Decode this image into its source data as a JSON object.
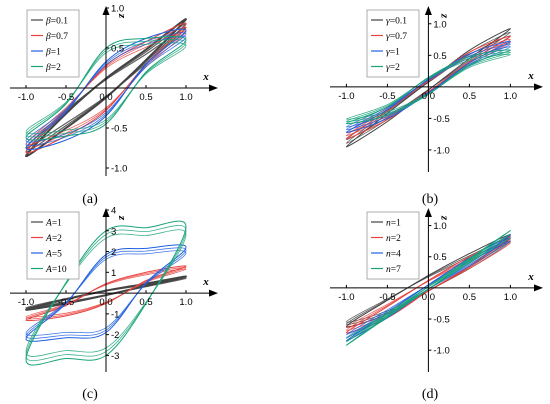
{
  "chart_data": [
    {
      "type": "line",
      "panel_label": "(a)",
      "xlabel": "x",
      "ylabel": "z",
      "xlim": [
        -1.2,
        1.3
      ],
      "ylim": [
        -1.1,
        1.0
      ],
      "xticks": [
        "-1.0",
        "-0.5",
        "0.0",
        "0.5",
        "1.0"
      ],
      "yticks": [
        "-1.0",
        "-0.5",
        "0.5",
        "1.0"
      ],
      "legend_position": "top-left",
      "series": [
        {
          "name": "β=0.1",
          "label_var": "β",
          "label_val": "=0.1",
          "color": "#444444",
          "stroke": 2.0,
          "x": [
            -1.0,
            -0.5,
            0.0,
            0.5,
            1.0,
            0.5,
            0.0,
            -0.5,
            -1.0
          ],
          "y": [
            -0.85,
            -0.5,
            -0.12,
            0.35,
            0.86,
            0.48,
            0.12,
            -0.32,
            -0.85
          ]
        },
        {
          "name": "β=0.7",
          "label_var": "β",
          "label_val": "=0.7",
          "color": "#e8433f",
          "stroke": 1.0,
          "x": [
            -1.0,
            -0.5,
            0.0,
            0.5,
            1.0,
            0.5,
            0.0,
            -0.5,
            -1.0
          ],
          "y": [
            -0.8,
            -0.6,
            -0.28,
            0.3,
            0.8,
            0.58,
            0.28,
            -0.28,
            -0.8
          ]
        },
        {
          "name": "β=1",
          "label_var": "β",
          "label_val": "=1",
          "color": "#2060e0",
          "stroke": 1.0,
          "x": [
            -1.0,
            -0.5,
            0.0,
            0.5,
            1.0,
            0.5,
            0.0,
            -0.5,
            -1.0
          ],
          "y": [
            -0.75,
            -0.65,
            -0.35,
            0.3,
            0.72,
            0.62,
            0.33,
            -0.3,
            -0.75
          ]
        },
        {
          "name": "β=2",
          "label_var": "β",
          "label_val": "=2",
          "color": "#1aa37a",
          "stroke": 1.0,
          "x": [
            -1.0,
            -0.5,
            0.0,
            0.5,
            1.0,
            0.5,
            0.0,
            -0.5,
            -1.0
          ],
          "y": [
            -0.62,
            -0.6,
            -0.45,
            0.2,
            0.6,
            0.62,
            0.5,
            -0.2,
            -0.62
          ]
        }
      ]
    },
    {
      "type": "line",
      "panel_label": "(b)",
      "xlabel": "x",
      "ylabel": "z",
      "xlim": [
        -1.2,
        1.3
      ],
      "ylim": [
        -1.35,
        1.25
      ],
      "xticks": [
        "-1.0",
        "-0.5",
        "0.0",
        "0.5",
        "1.0"
      ],
      "yticks": [
        "-1.0",
        "-0.5",
        "0.5",
        "1.0"
      ],
      "legend_position": "top-right",
      "series": [
        {
          "name": "γ=0.1",
          "label_var": "γ",
          "label_val": "=0.1",
          "color": "#444444",
          "stroke": 1.0,
          "x": [
            -1.0,
            -0.5,
            0.0,
            0.5,
            1.0,
            0.5,
            0.0,
            -0.5,
            -1.0
          ],
          "y": [
            -0.95,
            -0.55,
            -0.05,
            0.45,
            0.92,
            0.58,
            0.08,
            -0.42,
            -0.95
          ]
        },
        {
          "name": "γ=0.7",
          "label_var": "γ",
          "label_val": "=0.7",
          "color": "#e8433f",
          "stroke": 1.0,
          "x": [
            -1.0,
            -0.5,
            0.0,
            0.5,
            1.0,
            0.5,
            0.0,
            -0.5,
            -1.0
          ],
          "y": [
            -0.82,
            -0.52,
            -0.08,
            0.4,
            0.8,
            0.55,
            0.1,
            -0.38,
            -0.82
          ]
        },
        {
          "name": "γ=1",
          "label_var": "γ",
          "label_val": "=1",
          "color": "#2060e0",
          "stroke": 1.0,
          "x": [
            -1.0,
            -0.5,
            0.0,
            0.5,
            1.0,
            0.5,
            0.0,
            -0.5,
            -1.0
          ],
          "y": [
            -0.72,
            -0.5,
            -0.1,
            0.38,
            0.72,
            0.52,
            0.12,
            -0.36,
            -0.72
          ]
        },
        {
          "name": "γ=2",
          "label_var": "γ",
          "label_val": "=2",
          "color": "#1aa37a",
          "stroke": 1.0,
          "x": [
            -1.0,
            -0.5,
            0.0,
            0.5,
            1.0,
            0.5,
            0.0,
            -0.5,
            -1.0
          ],
          "y": [
            -0.58,
            -0.45,
            -0.12,
            0.35,
            0.58,
            0.48,
            0.15,
            -0.32,
            -0.58
          ]
        }
      ]
    },
    {
      "type": "line",
      "panel_label": "(c)",
      "xlabel": "x",
      "ylabel": "z",
      "xlim": [
        -1.2,
        1.3
      ],
      "ylim": [
        -3.8,
        4.0
      ],
      "xticks": [
        "-1.0",
        "-0.5",
        "0.0",
        "0.5",
        "1.0"
      ],
      "yticks": [
        "-3",
        "-2",
        "-1",
        "1",
        "2",
        "3",
        "4"
      ],
      "legend_position": "top-left",
      "series": [
        {
          "name": "A=1",
          "label_var": "A",
          "label_val": "=1",
          "color": "#444444",
          "stroke": 2.0,
          "x": [
            -1.0,
            -0.5,
            0.0,
            0.5,
            1.0,
            0.5,
            0.0,
            -0.5,
            -1.0
          ],
          "y": [
            -0.8,
            -0.5,
            -0.1,
            0.35,
            0.8,
            0.45,
            0.12,
            -0.3,
            -0.8
          ]
        },
        {
          "name": "A=2",
          "label_var": "A",
          "label_val": "=2",
          "color": "#e8433f",
          "stroke": 1.0,
          "x": [
            -1.0,
            -0.5,
            0.0,
            0.5,
            1.0,
            0.5,
            0.0,
            -0.5,
            -1.0
          ],
          "y": [
            -1.3,
            -1.1,
            -0.5,
            0.6,
            1.3,
            1.0,
            0.45,
            -0.6,
            -1.3
          ]
        },
        {
          "name": "A=5",
          "label_var": "A",
          "label_val": "=5",
          "color": "#2060e0",
          "stroke": 1.0,
          "x": [
            -1.0,
            -0.5,
            0.0,
            0.5,
            1.0,
            0.5,
            0.0,
            -0.5,
            -1.0
          ],
          "y": [
            -2.2,
            -2.15,
            -1.9,
            0.5,
            2.2,
            2.15,
            1.85,
            -0.5,
            -2.2
          ]
        },
        {
          "name": "A=10",
          "label_var": "A",
          "label_val": "=10",
          "color": "#1aa37a",
          "stroke": 1.0,
          "x": [
            -1.0,
            -0.5,
            0.0,
            0.5,
            1.0,
            0.5,
            0.0,
            -0.5,
            -1.0
          ],
          "y": [
            -3.2,
            -3.15,
            -3.0,
            -0.5,
            3.2,
            3.15,
            3.0,
            0.5,
            -3.2
          ]
        }
      ]
    },
    {
      "type": "line",
      "panel_label": "(d)",
      "xlabel": "x",
      "ylabel": "z",
      "xlim": [
        -1.2,
        1.3
      ],
      "ylim": [
        -1.35,
        1.25
      ],
      "xticks": [
        "-1.0",
        "-0.5",
        "0.0",
        "0.5",
        "1.0"
      ],
      "yticks": [
        "-1.0",
        "-0.5",
        "0.5",
        "1.0"
      ],
      "legend_position": "top-left",
      "series": [
        {
          "name": "n=1",
          "label_var": "n",
          "label_val": "=1",
          "color": "#444444",
          "stroke": 1.0,
          "x": [
            -1.0,
            -0.5,
            0.0,
            0.5,
            1.0,
            0.5,
            0.0,
            -0.5,
            -1.0
          ],
          "y": [
            -0.62,
            -0.2,
            0.2,
            0.55,
            0.85,
            0.35,
            -0.05,
            -0.42,
            -0.62
          ]
        },
        {
          "name": "n=2",
          "label_var": "n",
          "label_val": "=2",
          "color": "#e8433f",
          "stroke": 1.0,
          "x": [
            -1.0,
            -0.5,
            0.0,
            0.5,
            1.0,
            0.5,
            0.0,
            -0.5,
            -1.0
          ],
          "y": [
            -0.72,
            -0.3,
            0.12,
            0.5,
            0.82,
            0.35,
            -0.05,
            -0.48,
            -0.72
          ]
        },
        {
          "name": "n=4",
          "label_var": "n",
          "label_val": "=4",
          "color": "#2060e0",
          "stroke": 1.0,
          "x": [
            -1.0,
            -0.5,
            0.0,
            0.5,
            1.0,
            0.5,
            0.0,
            -0.5,
            -1.0
          ],
          "y": [
            -0.85,
            -0.4,
            0.05,
            0.48,
            0.85,
            0.4,
            -0.02,
            -0.48,
            -0.85
          ]
        },
        {
          "name": "n=7",
          "label_var": "n",
          "label_val": "=7",
          "color": "#1aa37a",
          "stroke": 1.0,
          "x": [
            -1.0,
            -0.5,
            0.0,
            0.5,
            1.0,
            0.5,
            0.0,
            -0.5,
            -1.0
          ],
          "y": [
            -0.92,
            -0.45,
            0.02,
            0.47,
            0.92,
            0.45,
            -0.02,
            -0.47,
            -0.92
          ]
        }
      ]
    }
  ]
}
